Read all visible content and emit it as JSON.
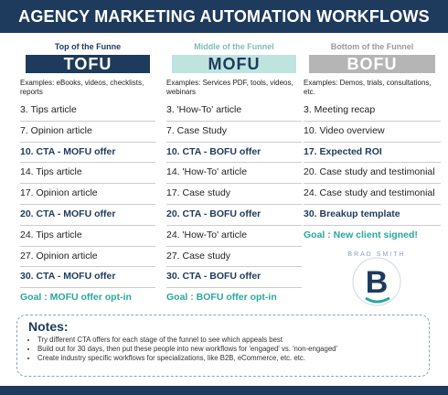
{
  "header": {
    "title": "AGENCY MARKETING AUTOMATION WORKFLOWS"
  },
  "columns": [
    {
      "stage_label": "Top of the Funne",
      "name": "TOFU",
      "examples": "Examples: eBooks, videos, checklists, reports",
      "items": [
        {
          "text": "3. Tips article",
          "style": "normal"
        },
        {
          "text": "7. Opinion article",
          "style": "normal"
        },
        {
          "text": "10. CTA - MOFU offer",
          "style": "cta"
        },
        {
          "text": "14. Tips article",
          "style": "normal"
        },
        {
          "text": "17. Opinion article",
          "style": "normal"
        },
        {
          "text": "20. CTA - MOFU offer",
          "style": "cta"
        },
        {
          "text": "24. Tips article",
          "style": "normal"
        },
        {
          "text": "27.  Opinion article",
          "style": "normal"
        },
        {
          "text": "30. CTA - MOFU offer",
          "style": "cta"
        },
        {
          "text": "Goal : MOFU offer opt-in",
          "style": "goal"
        }
      ]
    },
    {
      "stage_label": "Middle of the Funnel",
      "name": "MOFU",
      "examples": "Examples: Services PDF, tools, videos, webinars",
      "items": [
        {
          "text": "3. 'How-To' article",
          "style": "normal"
        },
        {
          "text": "7. Case Study",
          "style": "normal"
        },
        {
          "text": "10. CTA - BOFU offer",
          "style": "cta"
        },
        {
          "text": "14. 'How-To' article",
          "style": "normal"
        },
        {
          "text": "17. Case study",
          "style": "normal"
        },
        {
          "text": "20. CTA - BOFU offer",
          "style": "cta"
        },
        {
          "text": "24. 'How-To' article",
          "style": "normal"
        },
        {
          "text": "27. Case study",
          "style": "normal"
        },
        {
          "text": "30. CTA - BOFU offer",
          "style": "cta"
        },
        {
          "text": "Goal : BOFU offer opt-in",
          "style": "goal"
        }
      ]
    },
    {
      "stage_label": "Bottom of the Funnel",
      "name": "BOFU",
      "examples": "Examples: Demos, trials, consultations, etc.",
      "items": [
        {
          "text": "3. Meeting recap",
          "style": "normal"
        },
        {
          "text": "10. Video overview",
          "style": "normal"
        },
        {
          "text": "17. Expected ROI",
          "style": "cta"
        },
        {
          "text": "20. Case study and testimonial",
          "style": "normal"
        },
        {
          "text": "24. Case study and testimonial",
          "style": "normal"
        },
        {
          "text": "30. Breakup template",
          "style": "cta"
        },
        {
          "text": "Goal : New client signed!",
          "style": "goal"
        }
      ]
    }
  ],
  "logo": {
    "text": "BRAD SMITH",
    "letter": "B"
  },
  "notes": {
    "title": "Notes:",
    "items": [
      "Try different CTA offers for each stage of the funnel to see which appeals best",
      "Build out for 30 days, then put these people into new workflows for 'engaged' vs. 'non-engaged'",
      "Create industry specific workflows for specializations, like B2B, eCommerce, etc. etc."
    ]
  }
}
